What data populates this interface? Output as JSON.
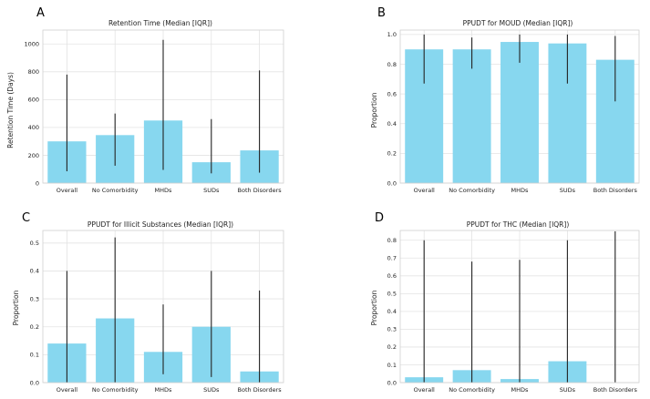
{
  "chart_data": [
    {
      "panel": "A",
      "type": "bar",
      "title": "Retention Time (Median [IQR])",
      "xlabel": "",
      "ylabel": "Retention Time (Days)",
      "categories": [
        "Overall",
        "No Comorbidity",
        "MHDs",
        "SUDs",
        "Both Disorders"
      ],
      "values": [
        300,
        345,
        450,
        150,
        235
      ],
      "err_low": [
        85,
        125,
        95,
        70,
        75
      ],
      "err_high": [
        780,
        500,
        1030,
        460,
        810
      ],
      "ylim": [
        0,
        1100
      ],
      "yticks": [
        0,
        200,
        400,
        600,
        800,
        1000
      ],
      "ytick_labels": [
        "0",
        "200",
        "400",
        "600",
        "800",
        "1000"
      ],
      "bar_color": "#87d7ef",
      "grid": true
    },
    {
      "panel": "B",
      "type": "bar",
      "title": "PPUDT for MOUD (Median [IQR])",
      "xlabel": "",
      "ylabel": "Proportion",
      "categories": [
        "Overall",
        "No Comorbidity",
        "MHDs",
        "SUDs",
        "Both Disorders"
      ],
      "values": [
        0.9,
        0.9,
        0.95,
        0.94,
        0.83
      ],
      "err_low": [
        0.67,
        0.77,
        0.81,
        0.67,
        0.55
      ],
      "err_high": [
        1.0,
        0.98,
        1.0,
        1.0,
        0.99
      ],
      "ylim": [
        0,
        1.03
      ],
      "yticks": [
        0,
        0.2,
        0.4,
        0.6,
        0.8,
        1.0
      ],
      "ytick_labels": [
        "0.0",
        "0.2",
        "0.4",
        "0.6",
        "0.8",
        "1.0"
      ],
      "bar_color": "#87d7ef",
      "grid": true
    },
    {
      "panel": "C",
      "type": "bar",
      "title": "PPUDT for Illicit Substances (Median [IQR])",
      "xlabel": "",
      "ylabel": "Proportion",
      "categories": [
        "Overall",
        "No Comorbidity",
        "MHDs",
        "SUDs",
        "Both Disorders"
      ],
      "values": [
        0.14,
        0.23,
        0.11,
        0.2,
        0.04
      ],
      "err_low": [
        0.0,
        0.0,
        0.03,
        0.02,
        0.0
      ],
      "err_high": [
        0.4,
        0.52,
        0.28,
        0.4,
        0.33
      ],
      "ylim": [
        0,
        0.545
      ],
      "yticks": [
        0,
        0.1,
        0.2,
        0.3,
        0.4,
        0.5
      ],
      "ytick_labels": [
        "0.0",
        "0.1",
        "0.2",
        "0.3",
        "0.4",
        "0.5"
      ],
      "bar_color": "#87d7ef",
      "grid": true
    },
    {
      "panel": "D",
      "type": "bar",
      "title": "PPUDT for THC (Median [IQR])",
      "xlabel": "",
      "ylabel": "Proportion",
      "categories": [
        "Overall",
        "No Comorbidity",
        "MHDs",
        "SUDs",
        "Both Disorders"
      ],
      "values": [
        0.03,
        0.07,
        0.02,
        0.12,
        0.0
      ],
      "err_low": [
        0.0,
        0.0,
        0.0,
        0.0,
        0.0
      ],
      "err_high": [
        0.8,
        0.68,
        0.69,
        0.8,
        0.85
      ],
      "ylim": [
        0,
        0.855
      ],
      "yticks": [
        0,
        0.1,
        0.2,
        0.3,
        0.4,
        0.5,
        0.6,
        0.7,
        0.8
      ],
      "ytick_labels": [
        "0.0",
        "0.1",
        "0.2",
        "0.3",
        "0.4",
        "0.5",
        "0.6",
        "0.7",
        "0.8"
      ],
      "bar_color": "#87d7ef",
      "grid": true
    }
  ]
}
